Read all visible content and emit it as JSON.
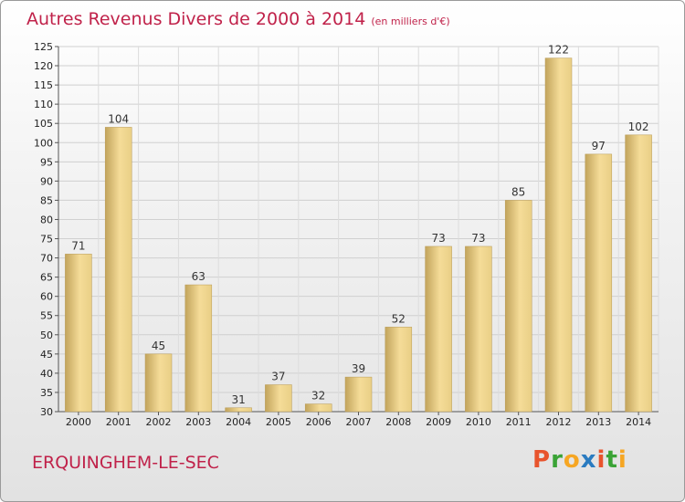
{
  "title": "Autres Revenus Divers de 2000 à 2014",
  "subtitle": "(en milliers d'€)",
  "commune": "ERQUINGHEM-LE-SEC",
  "logo": {
    "letters": [
      "P",
      "r",
      "o",
      "x",
      "i",
      "t",
      "i"
    ],
    "colors": [
      "#e8542d",
      "#3aa336",
      "#f6a623",
      "#2a7bc0",
      "#e8542d",
      "#3aa336",
      "#f6a623"
    ]
  },
  "colors": {
    "accent": "#c0224a",
    "bar_light": "#f5dc98",
    "bar_dark": "#c2a45c"
  },
  "chart_data": {
    "type": "bar",
    "categories": [
      "2000",
      "2001",
      "2002",
      "2003",
      "2004",
      "2005",
      "2006",
      "2007",
      "2008",
      "2009",
      "2010",
      "2011",
      "2012",
      "2013",
      "2014"
    ],
    "values": [
      71,
      104,
      45,
      63,
      31,
      37,
      32,
      39,
      52,
      73,
      73,
      85,
      122,
      97,
      102
    ],
    "ylim": [
      30,
      125
    ],
    "yticks": [
      30,
      35,
      40,
      45,
      50,
      55,
      60,
      65,
      70,
      75,
      80,
      85,
      90,
      95,
      100,
      105,
      110,
      115,
      120,
      125
    ],
    "grid": true
  }
}
